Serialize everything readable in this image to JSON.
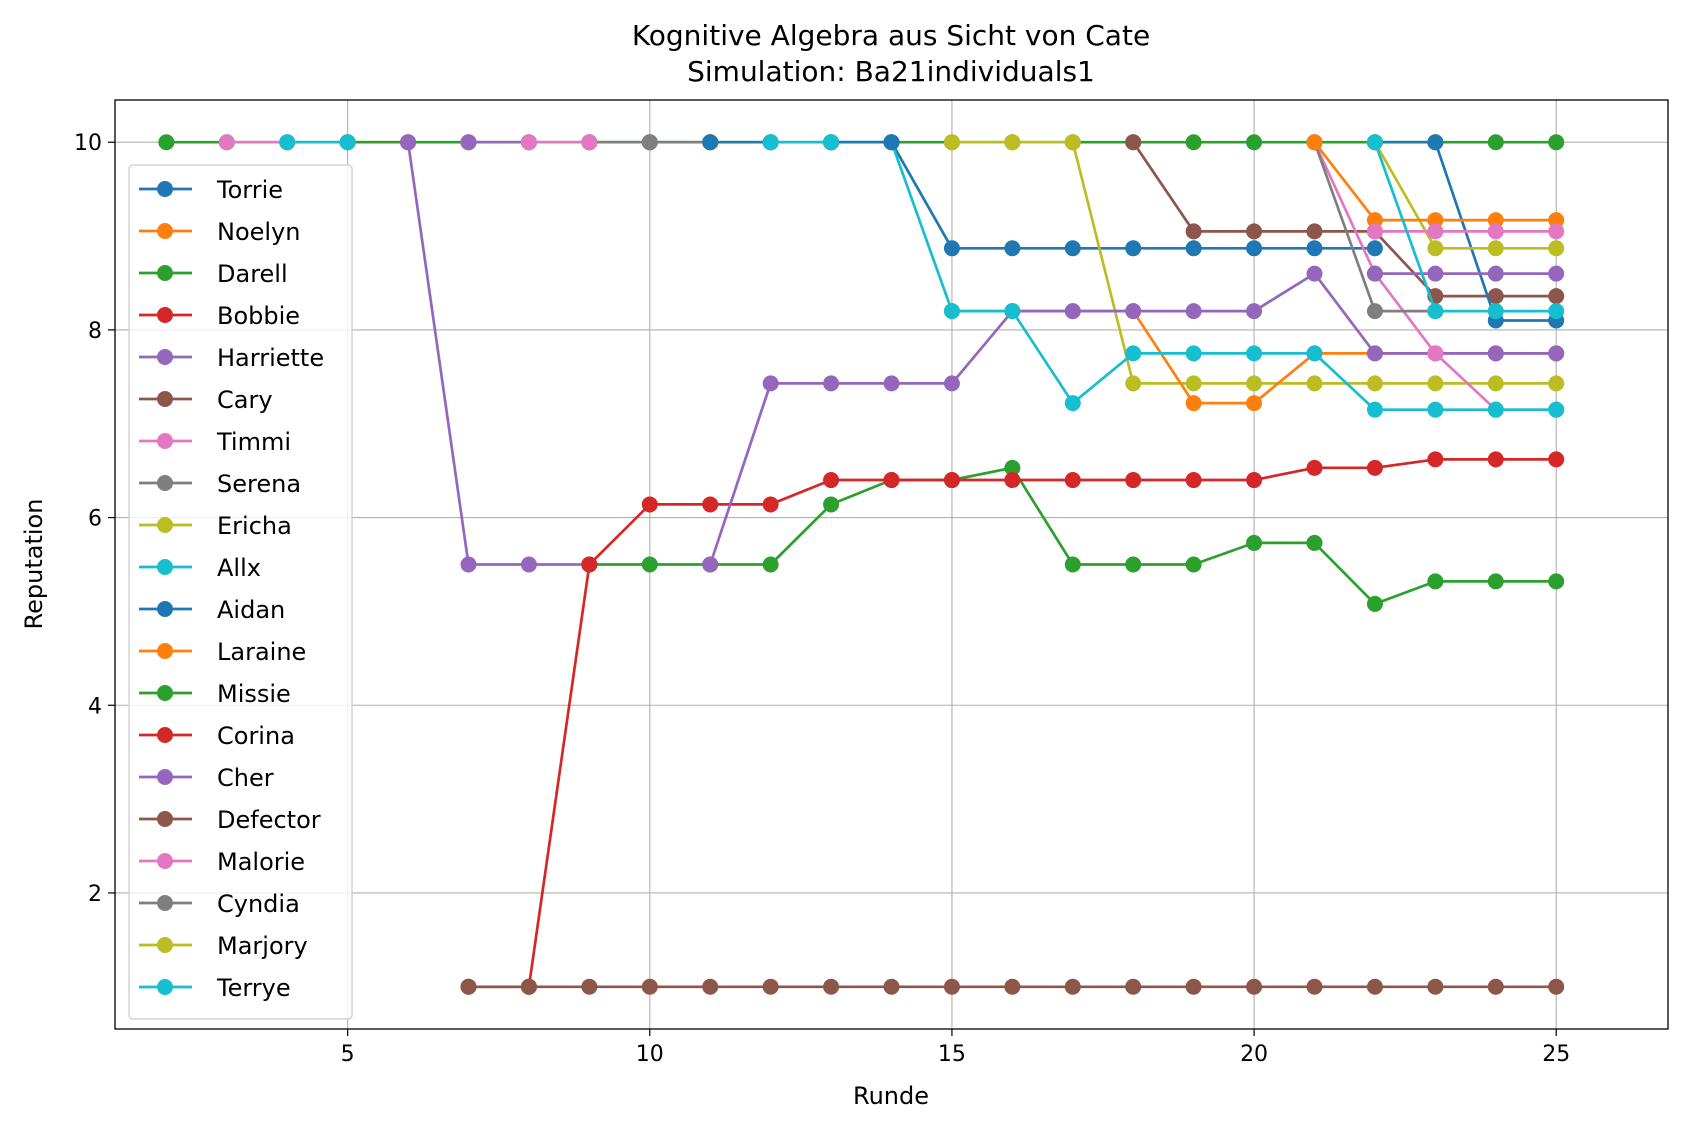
{
  "chart_data": {
    "type": "line",
    "title": "Kognitive Algebra aus Sicht von Cate",
    "subtitle": "Simulation: Ba21individuals1",
    "xlabel": "Runde",
    "ylabel": "Reputation",
    "xlim": [
      1.15,
      26.85
    ],
    "ylim": [
      0.55,
      10.45
    ],
    "xticks": [
      5,
      10,
      15,
      20,
      25
    ],
    "yticks": [
      2,
      4,
      6,
      8,
      10
    ],
    "grid": true,
    "legend_position": "left",
    "series": [
      {
        "name": "Torrie",
        "color": "#1f77b4",
        "x": [
          14,
          15,
          16,
          17,
          18,
          19,
          20,
          21,
          22
        ],
        "y": [
          10,
          8.87,
          8.87,
          8.87,
          8.87,
          8.87,
          8.87,
          8.87,
          8.87
        ]
      },
      {
        "name": "Noelyn",
        "color": "#ff7f0e",
        "x": [
          5,
          6
        ],
        "y": [
          10,
          10
        ]
      },
      {
        "name": "Darell",
        "color": "#2ca02c",
        "x": [
          2,
          3,
          4,
          5,
          6,
          7,
          8,
          9,
          10,
          11,
          12,
          13,
          14,
          15,
          16,
          17,
          18,
          19,
          20,
          21,
          22,
          23,
          24,
          25
        ],
        "y": [
          10,
          10,
          10,
          10,
          10,
          10,
          10,
          10,
          10,
          10,
          10,
          10,
          10,
          10,
          10,
          10,
          10,
          10,
          10,
          10,
          10,
          10,
          10,
          10
        ]
      },
      {
        "name": "Bobbie",
        "color": "#d62728",
        "x": [
          8,
          9
        ],
        "y": [
          1,
          5.5
        ]
      },
      {
        "name": "Harriette",
        "color": "#9467bd",
        "x": [
          6,
          7,
          8,
          9
        ],
        "y": [
          10,
          5.5,
          5.5,
          5.5
        ]
      },
      {
        "name": "Cary",
        "color": "#8c564b",
        "x": [
          18,
          19,
          20,
          21,
          22,
          23,
          24,
          25
        ],
        "y": [
          10,
          9.05,
          9.05,
          9.05,
          9.05,
          8.36,
          8.36,
          8.36
        ]
      },
      {
        "name": "Timmi",
        "color": "#e377c2",
        "x": [
          3,
          4
        ],
        "y": [
          10,
          10
        ]
      },
      {
        "name": "Serena",
        "color": "#7f7f7f",
        "x": [
          9,
          10
        ],
        "y": [
          10,
          10
        ]
      },
      {
        "name": "Ericha",
        "color": "#bcbd22",
        "x": [
          16,
          17,
          18,
          19,
          20,
          21,
          22,
          23,
          24,
          25
        ],
        "y": [
          10,
          10,
          7.43,
          7.43,
          7.43,
          7.43,
          7.43,
          7.43,
          7.43,
          7.43
        ]
      },
      {
        "name": "Allx",
        "color": "#17becf",
        "x": [
          4,
          5
        ],
        "y": [
          10,
          10
        ]
      },
      {
        "name": "Aidan",
        "color": "#1f77b4",
        "x": [
          22,
          23,
          24,
          25
        ],
        "y": [
          10,
          10,
          8.1,
          8.1
        ]
      },
      {
        "name": "Laraine",
        "color": "#ff7f0e",
        "x": [
          15,
          16,
          17,
          18,
          19,
          20,
          21,
          22,
          23,
          24,
          25
        ],
        "y": [
          8.2,
          8.2,
          8.2,
          8.2,
          7.22,
          7.22,
          7.75,
          7.75,
          7.75,
          7.75,
          7.75
        ]
      },
      {
        "name": "Missie",
        "color": "#2ca02c",
        "x": [
          9,
          10,
          11,
          12,
          13,
          14,
          15,
          16,
          17,
          18,
          19,
          20,
          21,
          22,
          23,
          24,
          25
        ],
        "y": [
          5.5,
          5.5,
          5.5,
          5.5,
          6.14,
          6.4,
          6.4,
          6.53,
          5.5,
          5.5,
          5.5,
          5.73,
          5.73,
          5.08,
          5.32,
          5.32,
          5.32
        ]
      },
      {
        "name": "Corina",
        "color": "#d62728",
        "x": [
          9,
          10,
          11,
          12,
          13,
          14,
          15,
          16,
          17,
          18,
          19,
          20,
          21,
          22,
          23,
          24,
          25
        ],
        "y": [
          5.5,
          6.14,
          6.14,
          6.14,
          6.4,
          6.4,
          6.4,
          6.4,
          6.4,
          6.4,
          6.4,
          6.4,
          6.53,
          6.53,
          6.62,
          6.62,
          6.62
        ]
      },
      {
        "name": "Cher",
        "color": "#9467bd",
        "x": [
          11,
          12,
          13,
          14,
          15,
          16,
          17,
          18,
          19,
          20,
          21,
          22,
          23,
          24,
          25
        ],
        "y": [
          5.5,
          7.43,
          7.43,
          7.43,
          7.43,
          8.2,
          8.2,
          8.2,
          8.2,
          8.2,
          8.6,
          7.75,
          7.75,
          7.75,
          7.75
        ]
      },
      {
        "name": "Defector",
        "color": "#8c564b",
        "x": [
          7,
          8,
          9,
          10,
          11,
          12,
          13,
          14,
          15,
          16,
          17,
          18,
          19,
          20,
          21,
          22,
          23,
          24,
          25
        ],
        "y": [
          1,
          1,
          1,
          1,
          1,
          1,
          1,
          1,
          1,
          1,
          1,
          1,
          1,
          1,
          1,
          1,
          1,
          1,
          1
        ]
      },
      {
        "name": "Malorie",
        "color": "#e377c2",
        "x": [
          21,
          22,
          23,
          24,
          25
        ],
        "y": [
          10,
          8.6,
          7.75,
          7.15,
          7.15
        ]
      },
      {
        "name": "Cyndia",
        "color": "#7f7f7f",
        "x": [
          21,
          22,
          23
        ],
        "y": [
          10,
          8.2,
          8.2
        ]
      },
      {
        "name": "Marjory",
        "color": "#bcbd22",
        "x": [
          22,
          23,
          24,
          25
        ],
        "y": [
          10,
          8.87,
          8.87,
          8.87
        ]
      },
      {
        "name": "Terrye",
        "color": "#17becf",
        "x": [
          13,
          14,
          15,
          16,
          17,
          18,
          19,
          20,
          21,
          22,
          23,
          24,
          25
        ],
        "y": [
          10,
          10,
          8.2,
          8.2,
          7.22,
          7.75,
          7.75,
          7.75,
          7.75,
          7.15,
          7.15,
          7.15,
          7.15
        ]
      }
    ],
    "overlay_segments": [
      {
        "color": "#1f77b4",
        "x": [
          13,
          14
        ],
        "y": [
          10,
          10
        ]
      },
      {
        "color": "#ff7f0e",
        "x": [
          21,
          22,
          23,
          24,
          25
        ],
        "y": [
          10,
          9.17,
          9.17,
          9.17,
          9.17
        ]
      },
      {
        "color": "#9467bd",
        "x": [
          7,
          8
        ],
        "y": [
          10,
          10
        ]
      },
      {
        "color": "#e377c2",
        "x": [
          8,
          9
        ],
        "y": [
          10,
          10
        ]
      },
      {
        "color": "#7f7f7f",
        "x": [
          10,
          11
        ],
        "y": [
          10,
          10
        ]
      },
      {
        "color": "#1f77b4",
        "x": [
          11,
          12
        ],
        "y": [
          10,
          10
        ]
      },
      {
        "color": "#17becf",
        "x": [
          12,
          13
        ],
        "y": [
          10,
          10
        ]
      },
      {
        "color": "#8c564b",
        "x": [
          7,
          8
        ],
        "y": [
          1,
          1
        ]
      },
      {
        "color": "#e377c2",
        "x": [
          22,
          23,
          24,
          25
        ],
        "y": [
          9.05,
          9.05,
          9.05,
          9.05
        ]
      },
      {
        "color": "#9467bd",
        "x": [
          22,
          23,
          24,
          25
        ],
        "y": [
          8.6,
          8.6,
          8.6,
          8.6
        ]
      },
      {
        "color": "#17becf",
        "x": [
          22,
          23,
          24,
          25
        ],
        "y": [
          10,
          8.2,
          8.2,
          8.2
        ]
      },
      {
        "color": "#bcbd22",
        "x": [
          15,
          16
        ],
        "y": [
          10,
          10
        ]
      }
    ]
  }
}
